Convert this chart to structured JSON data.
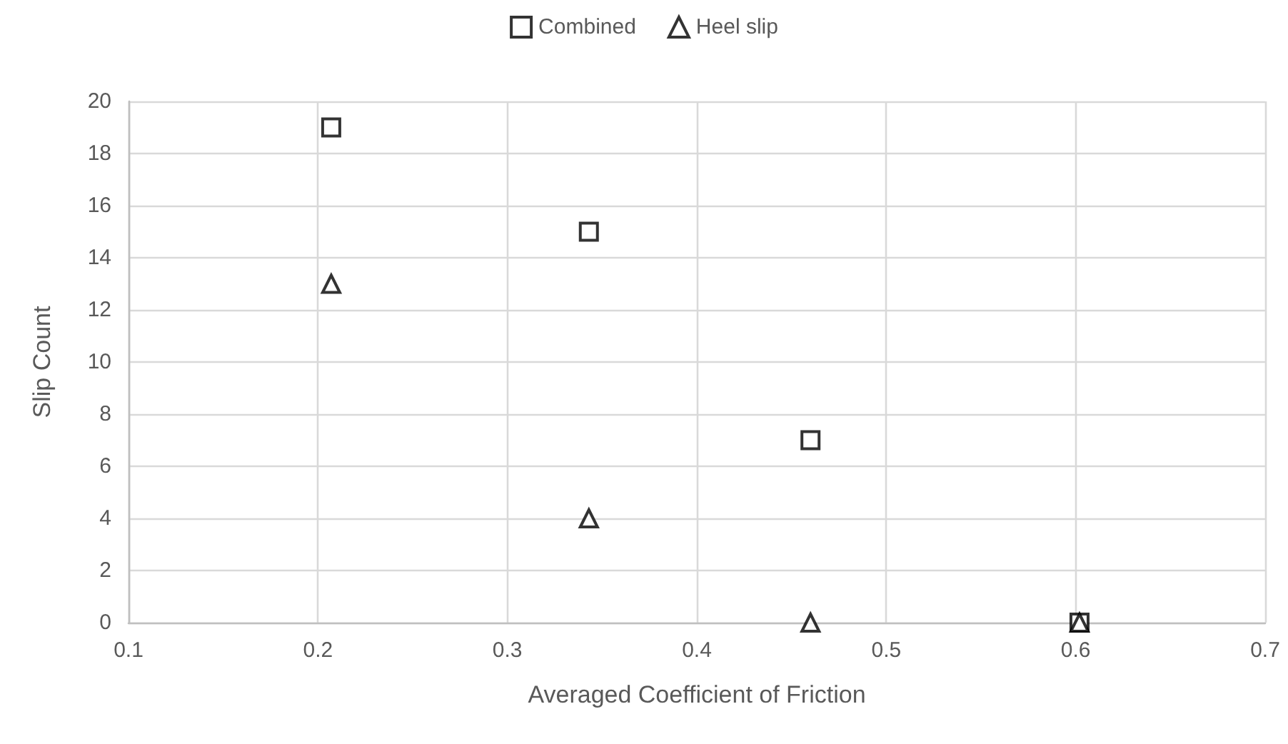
{
  "chart_data": {
    "type": "scatter",
    "xlabel": "Averaged Coefficient of Friction",
    "ylabel": "Slip Count",
    "series": [
      {
        "name": "Combined",
        "color": "#000000",
        "marker": "square",
        "x": [
          0.207,
          0.343,
          0.46,
          0.602
        ],
        "values": [
          19,
          15,
          7,
          0
        ]
      },
      {
        "name": "Heel slip",
        "color": "#000000",
        "marker": "triangle",
        "x": [
          0.207,
          0.343,
          0.46,
          0.602
        ],
        "values": [
          13,
          4,
          0,
          0
        ]
      }
    ],
    "xlim": [
      0.1,
      0.7
    ],
    "xticks": [
      0.1,
      0.2,
      0.3,
      0.4,
      0.5,
      0.6,
      0.7
    ],
    "ylim": [
      0,
      20
    ],
    "yticks": [
      0,
      2,
      4,
      6,
      8,
      10,
      12,
      14,
      16,
      18,
      20
    ],
    "grid": true,
    "legend": "top"
  }
}
